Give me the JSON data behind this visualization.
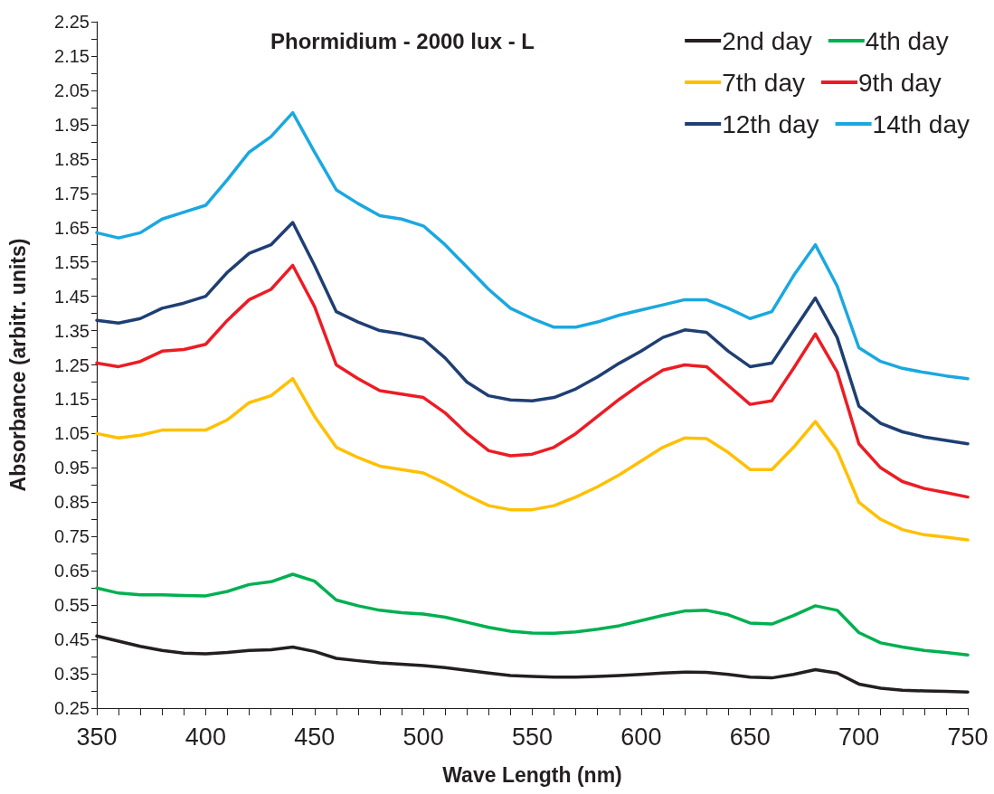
{
  "chart_data": {
    "type": "line",
    "title": "Phormidium - 2000 lux - L",
    "xlabel": "Wave Length (nm)",
    "ylabel": "Absorbance (arbitr. units)",
    "x": [
      350,
      360,
      370,
      380,
      390,
      400,
      410,
      420,
      430,
      440,
      450,
      460,
      470,
      480,
      490,
      500,
      510,
      520,
      530,
      540,
      550,
      560,
      570,
      580,
      590,
      600,
      610,
      620,
      630,
      640,
      650,
      660,
      670,
      680,
      690,
      700,
      710,
      720,
      730,
      740,
      750
    ],
    "series": [
      {
        "name": "2nd day",
        "color": "#231f20",
        "values": [
          0.46,
          0.445,
          0.43,
          0.418,
          0.41,
          0.408,
          0.412,
          0.418,
          0.42,
          0.428,
          0.415,
          0.395,
          0.388,
          0.382,
          0.378,
          0.374,
          0.368,
          0.36,
          0.352,
          0.345,
          0.342,
          0.34,
          0.34,
          0.342,
          0.345,
          0.348,
          0.352,
          0.355,
          0.354,
          0.348,
          0.34,
          0.338,
          0.348,
          0.362,
          0.352,
          0.32,
          0.308,
          0.302,
          0.3,
          0.299,
          0.297
        ]
      },
      {
        "name": "4th day",
        "color": "#00b050",
        "values": [
          0.6,
          0.585,
          0.58,
          0.58,
          0.578,
          0.577,
          0.59,
          0.61,
          0.618,
          0.64,
          0.62,
          0.565,
          0.548,
          0.535,
          0.528,
          0.524,
          0.515,
          0.5,
          0.485,
          0.474,
          0.469,
          0.468,
          0.472,
          0.48,
          0.49,
          0.505,
          0.52,
          0.533,
          0.535,
          0.522,
          0.498,
          0.495,
          0.52,
          0.548,
          0.535,
          0.47,
          0.44,
          0.428,
          0.418,
          0.412,
          0.405
        ]
      },
      {
        "name": "7th day",
        "color": "#ffc000",
        "values": [
          1.05,
          1.037,
          1.045,
          1.06,
          1.06,
          1.06,
          1.09,
          1.14,
          1.16,
          1.21,
          1.1,
          1.01,
          0.98,
          0.955,
          0.945,
          0.935,
          0.905,
          0.87,
          0.84,
          0.828,
          0.828,
          0.84,
          0.865,
          0.895,
          0.93,
          0.97,
          1.01,
          1.037,
          1.035,
          0.995,
          0.945,
          0.945,
          1.01,
          1.085,
          1.0,
          0.85,
          0.8,
          0.77,
          0.755,
          0.748,
          0.74
        ]
      },
      {
        "name": "9th day",
        "color": "#ed1c24",
        "values": [
          1.255,
          1.245,
          1.26,
          1.29,
          1.295,
          1.31,
          1.38,
          1.44,
          1.47,
          1.54,
          1.42,
          1.25,
          1.21,
          1.175,
          1.165,
          1.155,
          1.11,
          1.05,
          1.0,
          0.985,
          0.99,
          1.01,
          1.05,
          1.1,
          1.15,
          1.195,
          1.235,
          1.25,
          1.245,
          1.19,
          1.135,
          1.145,
          1.24,
          1.34,
          1.23,
          1.02,
          0.95,
          0.91,
          0.89,
          0.878,
          0.865
        ]
      },
      {
        "name": "12th day",
        "color": "#1f3f73",
        "values": [
          1.38,
          1.372,
          1.385,
          1.415,
          1.43,
          1.45,
          1.52,
          1.575,
          1.6,
          1.665,
          1.54,
          1.405,
          1.375,
          1.35,
          1.34,
          1.325,
          1.27,
          1.2,
          1.16,
          1.148,
          1.145,
          1.155,
          1.18,
          1.215,
          1.255,
          1.29,
          1.33,
          1.352,
          1.345,
          1.29,
          1.245,
          1.255,
          1.35,
          1.445,
          1.33,
          1.13,
          1.08,
          1.055,
          1.04,
          1.03,
          1.02
        ]
      },
      {
        "name": "14th day",
        "color": "#1aa8e0",
        "values": [
          1.635,
          1.62,
          1.635,
          1.675,
          1.695,
          1.715,
          1.79,
          1.87,
          1.915,
          1.985,
          1.87,
          1.76,
          1.72,
          1.685,
          1.675,
          1.655,
          1.6,
          1.535,
          1.47,
          1.415,
          1.385,
          1.36,
          1.36,
          1.375,
          1.395,
          1.41,
          1.425,
          1.44,
          1.44,
          1.415,
          1.385,
          1.405,
          1.51,
          1.6,
          1.48,
          1.3,
          1.26,
          1.24,
          1.228,
          1.218,
          1.21
        ]
      }
    ],
    "xlim": [
      350,
      750
    ],
    "xticks": [
      350,
      {
        "value": 360,
        "label": null
      },
      {
        "value": 370,
        "label": null
      },
      {
        "value": 380,
        "label": null
      },
      {
        "value": 390,
        "label": null
      },
      400,
      {
        "value": 410,
        "label": null
      },
      {
        "value": 420,
        "label": null
      },
      {
        "value": 430,
        "label": null
      },
      {
        "value": 440,
        "label": null
      },
      450,
      {
        "value": 460,
        "label": null
      },
      {
        "value": 470,
        "label": null
      },
      {
        "value": 480,
        "label": null
      },
      {
        "value": 490,
        "label": null
      },
      500,
      {
        "value": 510,
        "label": null
      },
      {
        "value": 520,
        "label": null
      },
      {
        "value": 530,
        "label": null
      },
      {
        "value": 540,
        "label": null
      },
      550,
      {
        "value": 560,
        "label": null
      },
      {
        "value": 570,
        "label": null
      },
      {
        "value": 580,
        "label": null
      },
      {
        "value": 590,
        "label": null
      },
      600,
      {
        "value": 610,
        "label": null
      },
      {
        "value": 620,
        "label": null
      },
      {
        "value": 630,
        "label": null
      },
      {
        "value": 640,
        "label": null
      },
      650,
      {
        "value": 660,
        "label": null
      },
      {
        "value": 670,
        "label": null
      },
      {
        "value": 680,
        "label": null
      },
      {
        "value": 690,
        "label": null
      },
      700,
      {
        "value": 710,
        "label": null
      },
      {
        "value": 720,
        "label": null
      },
      {
        "value": 730,
        "label": null
      },
      {
        "value": 740,
        "label": null
      },
      750
    ],
    "ylim": [
      0.25,
      2.25
    ],
    "yticks": [
      0.25,
      {
        "value": 0.3,
        "label": null
      },
      0.35,
      {
        "value": 0.4,
        "label": null
      },
      0.45,
      {
        "value": 0.5,
        "label": null
      },
      0.55,
      {
        "value": 0.6,
        "label": null
      },
      0.65,
      {
        "value": 0.7,
        "label": null
      },
      0.75,
      {
        "value": 0.8,
        "label": null
      },
      0.85,
      {
        "value": 0.9,
        "label": null
      },
      0.95,
      {
        "value": 1.0,
        "label": null
      },
      1.05,
      {
        "value": 1.1,
        "label": null
      },
      1.15,
      {
        "value": 1.2,
        "label": null
      },
      1.25,
      {
        "value": 1.3,
        "label": null
      },
      1.35,
      {
        "value": 1.4,
        "label": null
      },
      1.45,
      {
        "value": 1.5,
        "label": null
      },
      1.55,
      {
        "value": 1.6,
        "label": null
      },
      1.65,
      {
        "value": 1.7,
        "label": null
      },
      1.75,
      {
        "value": 1.8,
        "label": null
      },
      1.85,
      {
        "value": 1.9,
        "label": null
      },
      1.95,
      {
        "value": 2.0,
        "label": null
      },
      2.05,
      {
        "value": 2.1,
        "label": null
      },
      2.15,
      {
        "value": 2.2,
        "label": null
      },
      2.25
    ],
    "grid": false,
    "legend": "top right",
    "marker": "none",
    "line_style": "solid"
  }
}
